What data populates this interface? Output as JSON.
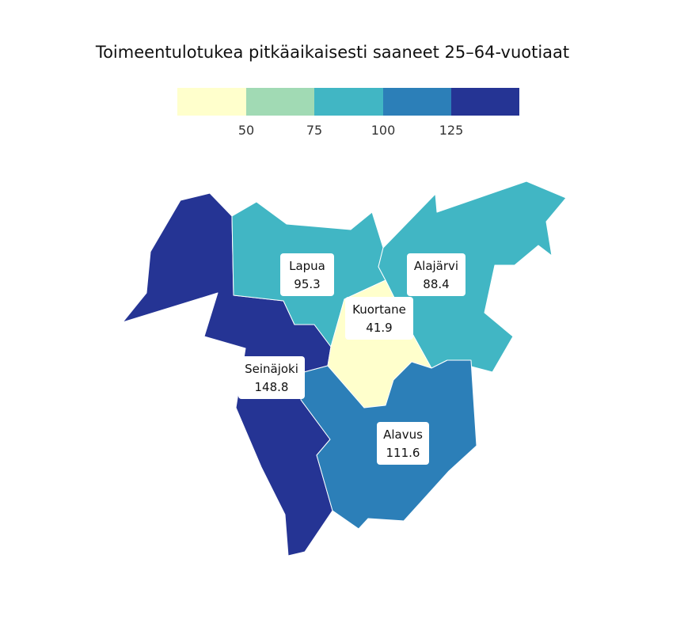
{
  "title": "Toimeentulotukea pitkäaikaisesti saaneet 25–64-vuotiaat",
  "legend": {
    "bins": [
      {
        "color": "#ffffcc"
      },
      {
        "color": "#a1dab4"
      },
      {
        "color": "#41b6c4"
      },
      {
        "color": "#2c7fb8"
      },
      {
        "color": "#253494"
      }
    ],
    "ticks": [
      "50",
      "75",
      "100",
      "125"
    ]
  },
  "regions": [
    {
      "name": "Lapua",
      "value": "95.3",
      "color": "#41b6c4"
    },
    {
      "name": "Alajärvi",
      "value": "88.4",
      "color": "#41b6c4"
    },
    {
      "name": "Kuortane",
      "value": "41.9",
      "color": "#ffffcc"
    },
    {
      "name": "Seinäjoki",
      "value": "148.8",
      "color": "#253494"
    },
    {
      "name": "Alavus",
      "value": "111.6",
      "color": "#2c7fb8"
    }
  ]
}
